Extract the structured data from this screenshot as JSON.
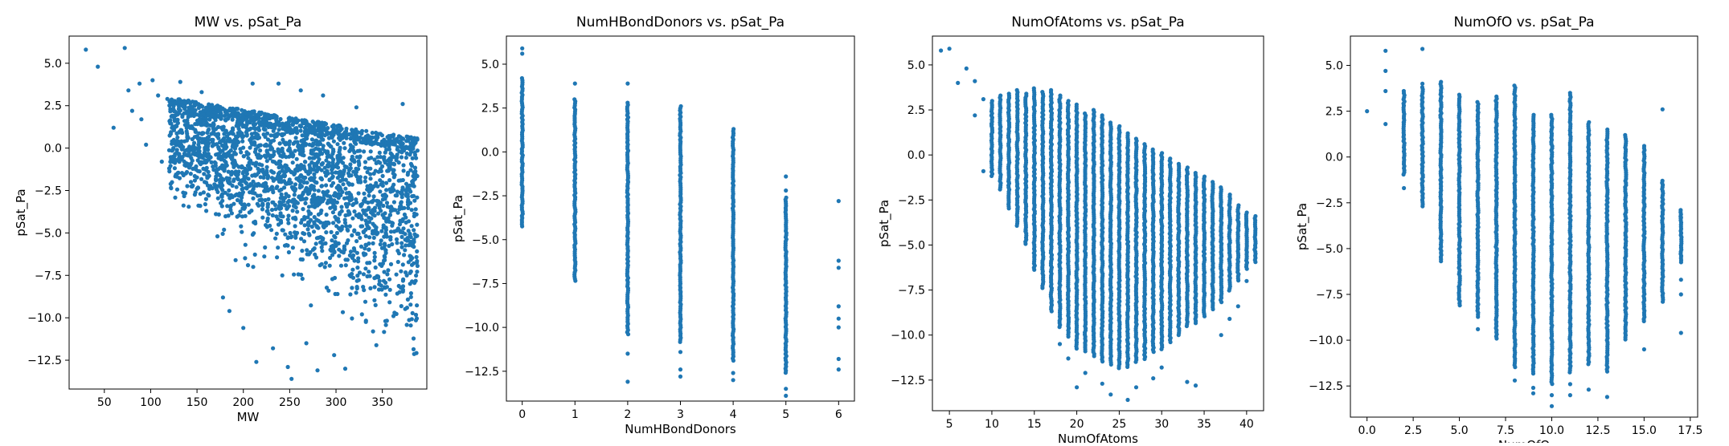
{
  "figure": {
    "background": "#ffffff",
    "marker_color": "#1f77b4"
  },
  "chart_data": [
    {
      "type": "scatter",
      "title": "MW vs. pSat_Pa",
      "xlabel": "MW",
      "ylabel": "pSat_Pa",
      "xlim": [
        12,
        398
      ],
      "ylim": [
        -14.2,
        6.6
      ],
      "xticks": [
        {
          "v": 50,
          "label": "50"
        },
        {
          "v": 100,
          "label": "100"
        },
        {
          "v": 150,
          "label": "150"
        },
        {
          "v": 200,
          "label": "200"
        },
        {
          "v": 250,
          "label": "250"
        },
        {
          "v": 300,
          "label": "300"
        },
        {
          "v": 350,
          "label": "350"
        },
        {
          "v": 400,
          "label": "400"
        }
      ],
      "yticks": [
        {
          "v": 5,
          "label": "5.0"
        },
        {
          "v": 2.5,
          "label": "2.5"
        },
        {
          "v": 0,
          "label": "0.0"
        },
        {
          "v": -2.5,
          "label": "−2.5"
        },
        {
          "v": -5,
          "label": "−5.0"
        },
        {
          "v": -7.5,
          "label": "−7.5"
        },
        {
          "v": -10,
          "label": "−10.0"
        },
        {
          "v": -12.5,
          "label": "−12.5"
        }
      ],
      "grid": false,
      "legend": "none",
      "points": [
        [
          30,
          5.8
        ],
        [
          43,
          4.8
        ],
        [
          60,
          1.2
        ],
        [
          72,
          5.9
        ],
        [
          76,
          3.4
        ],
        [
          80,
          2.2
        ],
        [
          88,
          3.8
        ],
        [
          90,
          1.7
        ],
        [
          95,
          0.2
        ],
        [
          102,
          4.0
        ],
        [
          108,
          3.1
        ],
        [
          112,
          -0.8
        ],
        [
          118,
          2.9
        ],
        [
          120,
          -1.2
        ],
        [
          126,
          1.6
        ],
        [
          132,
          3.9
        ],
        [
          138,
          -0.4
        ],
        [
          144,
          2.2
        ],
        [
          150,
          -2.4
        ],
        [
          155,
          3.3
        ],
        [
          160,
          -3.7
        ],
        [
          168,
          1.0
        ],
        [
          172,
          -5.2
        ],
        [
          178,
          -8.8
        ],
        [
          185,
          -9.6
        ],
        [
          190,
          0.4
        ],
        [
          196,
          -2.1
        ],
        [
          200,
          -10.6
        ],
        [
          205,
          -6.9
        ],
        [
          210,
          3.8
        ],
        [
          214,
          -12.6
        ],
        [
          220,
          -1.0
        ],
        [
          226,
          -4.3
        ],
        [
          232,
          -11.8
        ],
        [
          238,
          3.8
        ],
        [
          242,
          -7.5
        ],
        [
          248,
          -12.9
        ],
        [
          252,
          -13.6
        ],
        [
          258,
          -5.0
        ],
        [
          262,
          3.4
        ],
        [
          268,
          -11.5
        ],
        [
          274,
          -3.2
        ],
        [
          280,
          -13.1
        ],
        [
          286,
          3.1
        ],
        [
          292,
          -8.4
        ],
        [
          298,
          -12.2
        ],
        [
          304,
          -2.3
        ],
        [
          310,
          -13.0
        ],
        [
          316,
          -6.1
        ],
        [
          322,
          2.4
        ],
        [
          328,
          -9.8
        ],
        [
          334,
          -4.6
        ],
        [
          340,
          -10.8
        ],
        [
          346,
          -1.4
        ],
        [
          352,
          -7.3
        ],
        [
          358,
          -3.5
        ],
        [
          362,
          -9.9
        ],
        [
          368,
          -6.2
        ],
        [
          372,
          2.6
        ],
        [
          376,
          -2.8
        ],
        [
          380,
          -8.0
        ],
        [
          384,
          -5.4
        ],
        [
          386,
          -3.6
        ],
        [
          240,
          -3.3
        ],
        [
          256,
          -4.1
        ],
        [
          270,
          -2.7
        ],
        [
          295,
          -5.8
        ],
        [
          310,
          -4.4
        ],
        [
          330,
          -3.1
        ],
        [
          345,
          -5.0
        ]
      ],
      "columns": []
    },
    {
      "type": "scatter",
      "title": "NumHBondDonors vs. pSat_Pa",
      "xlabel": "NumHBondDonors",
      "ylabel": "pSat_Pa",
      "xlim": [
        -0.3,
        6.3
      ],
      "ylim": [
        -14.2,
        6.6
      ],
      "xticks": [
        {
          "v": 0,
          "label": "0"
        },
        {
          "v": 1,
          "label": "1"
        },
        {
          "v": 2,
          "label": "2"
        },
        {
          "v": 3,
          "label": "3"
        },
        {
          "v": 4,
          "label": "4"
        },
        {
          "v": 5,
          "label": "5"
        },
        {
          "v": 6,
          "label": "6"
        }
      ],
      "yticks": [
        {
          "v": 5,
          "label": "5.0"
        },
        {
          "v": 2.5,
          "label": "2.5"
        },
        {
          "v": 0,
          "label": "0.0"
        },
        {
          "v": -2.5,
          "label": "−2.5"
        },
        {
          "v": -5,
          "label": "−5.0"
        },
        {
          "v": -7.5,
          "label": "−7.5"
        },
        {
          "v": -10,
          "label": "−10.0"
        },
        {
          "v": -12.5,
          "label": "−12.5"
        }
      ],
      "grid": false,
      "legend": "none",
      "points": [
        [
          0,
          5.9
        ],
        [
          0,
          5.6
        ],
        [
          1,
          3.9
        ],
        [
          2,
          3.9
        ],
        [
          2,
          -11.5
        ],
        [
          2,
          -13.1
        ],
        [
          3,
          -11.4
        ],
        [
          3,
          -12.4
        ],
        [
          3,
          -12.8
        ],
        [
          4,
          -12.6
        ],
        [
          4,
          -13.0
        ],
        [
          5,
          -13.5
        ],
        [
          5,
          -13.9
        ],
        [
          5,
          -2.2
        ],
        [
          5,
          -1.4
        ],
        [
          6,
          -2.8
        ],
        [
          6,
          -6.2
        ],
        [
          6,
          -6.6
        ],
        [
          6,
          -8.8
        ],
        [
          6,
          -9.5
        ],
        [
          6,
          -10.0
        ],
        [
          6,
          -11.8
        ],
        [
          6,
          -12.4
        ]
      ],
      "columns": [
        {
          "x": 0,
          "y_min": -4.3,
          "y_max": 4.2
        },
        {
          "x": 1,
          "y_min": -7.4,
          "y_max": 3.0
        },
        {
          "x": 2,
          "y_min": -10.4,
          "y_max": 2.8
        },
        {
          "x": 3,
          "y_min": -10.9,
          "y_max": 2.6
        },
        {
          "x": 4,
          "y_min": -11.9,
          "y_max": 1.3
        },
        {
          "x": 5,
          "y_min": -12.6,
          "y_max": -2.6
        }
      ]
    },
    {
      "type": "scatter",
      "title": "NumOfAtoms vs. pSat_Pa",
      "xlabel": "NumOfAtoms",
      "ylabel": "pSat_Pa",
      "xlim": [
        3,
        42
      ],
      "ylim": [
        -14.2,
        6.6
      ],
      "xticks": [
        {
          "v": 5,
          "label": "5"
        },
        {
          "v": 10,
          "label": "10"
        },
        {
          "v": 15,
          "label": "15"
        },
        {
          "v": 20,
          "label": "20"
        },
        {
          "v": 25,
          "label": "25"
        },
        {
          "v": 30,
          "label": "30"
        },
        {
          "v": 35,
          "label": "35"
        },
        {
          "v": 40,
          "label": "40"
        }
      ],
      "yticks": [
        {
          "v": 5,
          "label": "5.0"
        },
        {
          "v": 2.5,
          "label": "2.5"
        },
        {
          "v": 0,
          "label": "0.0"
        },
        {
          "v": -2.5,
          "label": "−2.5"
        },
        {
          "v": -5,
          "label": "−5.0"
        },
        {
          "v": -7.5,
          "label": "−7.5"
        },
        {
          "v": -10,
          "label": "−10.0"
        },
        {
          "v": -12.5,
          "label": "−12.5"
        }
      ],
      "grid": false,
      "legend": "none",
      "points": [
        [
          4,
          5.8
        ],
        [
          5,
          5.9
        ],
        [
          6,
          4.0
        ],
        [
          7,
          4.8
        ],
        [
          8,
          2.2
        ],
        [
          8,
          4.1
        ],
        [
          9,
          -0.9
        ],
        [
          9,
          3.1
        ],
        [
          10,
          1.7
        ],
        [
          11,
          0.6
        ],
        [
          12,
          -1.5
        ],
        [
          13,
          -3.0
        ],
        [
          14,
          -4.2
        ],
        [
          15,
          -5.6
        ],
        [
          18,
          -10.5
        ],
        [
          19,
          -11.3
        ],
        [
          20,
          -12.9
        ],
        [
          21,
          -12.1
        ],
        [
          23,
          -12.7
        ],
        [
          24,
          -13.3
        ],
        [
          26,
          -13.6
        ],
        [
          27,
          -12.9
        ],
        [
          29,
          -12.4
        ],
        [
          30,
          -11.8
        ],
        [
          33,
          -12.6
        ],
        [
          34,
          -12.8
        ],
        [
          37,
          -10.0
        ],
        [
          38,
          -9.1
        ],
        [
          39,
          -8.4
        ],
        [
          40,
          -7.0
        ]
      ],
      "columns": [
        {
          "x": 10,
          "y_min": -1.2,
          "y_max": 3.0
        },
        {
          "x": 11,
          "y_min": -2.0,
          "y_max": 3.3
        },
        {
          "x": 12,
          "y_min": -3.0,
          "y_max": 3.4
        },
        {
          "x": 13,
          "y_min": -4.0,
          "y_max": 3.6
        },
        {
          "x": 14,
          "y_min": -5.0,
          "y_max": 3.4
        },
        {
          "x": 15,
          "y_min": -6.4,
          "y_max": 3.7
        },
        {
          "x": 16,
          "y_min": -7.5,
          "y_max": 3.5
        },
        {
          "x": 17,
          "y_min": -8.7,
          "y_max": 3.6
        },
        {
          "x": 18,
          "y_min": -9.6,
          "y_max": 3.3
        },
        {
          "x": 19,
          "y_min": -10.2,
          "y_max": 3.0
        },
        {
          "x": 20,
          "y_min": -10.8,
          "y_max": 2.8
        },
        {
          "x": 21,
          "y_min": -11.0,
          "y_max": 2.3
        },
        {
          "x": 22,
          "y_min": -11.2,
          "y_max": 2.5
        },
        {
          "x": 23,
          "y_min": -11.5,
          "y_max": 2.2
        },
        {
          "x": 24,
          "y_min": -11.7,
          "y_max": 1.8
        },
        {
          "x": 25,
          "y_min": -11.9,
          "y_max": 1.6
        },
        {
          "x": 26,
          "y_min": -11.8,
          "y_max": 1.2
        },
        {
          "x": 27,
          "y_min": -11.6,
          "y_max": 0.9
        },
        {
          "x": 28,
          "y_min": -11.4,
          "y_max": 0.6
        },
        {
          "x": 29,
          "y_min": -11.0,
          "y_max": 0.3
        },
        {
          "x": 30,
          "y_min": -10.8,
          "y_max": 0.1
        },
        {
          "x": 31,
          "y_min": -10.4,
          "y_max": -0.2
        },
        {
          "x": 32,
          "y_min": -10.0,
          "y_max": -0.5
        },
        {
          "x": 33,
          "y_min": -9.6,
          "y_max": -0.7
        },
        {
          "x": 34,
          "y_min": -9.4,
          "y_max": -1.0
        },
        {
          "x": 35,
          "y_min": -9.0,
          "y_max": -1.2
        },
        {
          "x": 36,
          "y_min": -8.6,
          "y_max": -1.5
        },
        {
          "x": 37,
          "y_min": -8.2,
          "y_max": -1.8
        },
        {
          "x": 38,
          "y_min": -7.6,
          "y_max": -2.2
        },
        {
          "x": 39,
          "y_min": -7.0,
          "y_max": -2.8
        },
        {
          "x": 40,
          "y_min": -6.4,
          "y_max": -3.2
        },
        {
          "x": 41,
          "y_min": -6.0,
          "y_max": -3.4
        }
      ]
    },
    {
      "type": "scatter",
      "title": "NumOfO vs. pSat_Pa",
      "xlabel": "NumOfO",
      "ylabel": "pSat_Pa",
      "xlim": [
        -0.9,
        17.9
      ],
      "ylim": [
        -14.2,
        6.6
      ],
      "xticks": [
        {
          "v": 0,
          "label": "0.0"
        },
        {
          "v": 2.5,
          "label": "2.5"
        },
        {
          "v": 5,
          "label": "5.0"
        },
        {
          "v": 7.5,
          "label": "7.5"
        },
        {
          "v": 10,
          "label": "10.0"
        },
        {
          "v": 12.5,
          "label": "12.5"
        },
        {
          "v": 15,
          "label": "15.0"
        },
        {
          "v": 17.5,
          "label": "17.5"
        }
      ],
      "yticks": [
        {
          "v": 5,
          "label": "5.0"
        },
        {
          "v": 2.5,
          "label": "2.5"
        },
        {
          "v": 0,
          "label": "0.0"
        },
        {
          "v": -2.5,
          "label": "−2.5"
        },
        {
          "v": -5,
          "label": "−5.0"
        },
        {
          "v": -7.5,
          "label": "−7.5"
        },
        {
          "v": -10,
          "label": "−10.0"
        },
        {
          "v": -12.5,
          "label": "−12.5"
        }
      ],
      "grid": false,
      "legend": "none",
      "points": [
        [
          0,
          2.5
        ],
        [
          1,
          1.8
        ],
        [
          1,
          4.7
        ],
        [
          1,
          5.8
        ],
        [
          1,
          3.6
        ],
        [
          2,
          1.9
        ],
        [
          2,
          -1.7
        ],
        [
          3,
          5.9
        ],
        [
          3,
          4.0
        ],
        [
          6,
          -9.4
        ],
        [
          8,
          -12.2
        ],
        [
          9,
          -12.9
        ],
        [
          9,
          -12.6
        ],
        [
          10,
          -13.6
        ],
        [
          10,
          -13.0
        ],
        [
          11,
          -13.0
        ],
        [
          11,
          -12.4
        ],
        [
          12,
          -12.7
        ],
        [
          13,
          -13.1
        ],
        [
          15,
          -10.5
        ],
        [
          16,
          2.6
        ],
        [
          17,
          -3.3
        ],
        [
          17,
          -6.7
        ],
        [
          17,
          -7.5
        ],
        [
          17,
          -9.6
        ]
      ],
      "columns": [
        {
          "x": 2,
          "y_min": -1.0,
          "y_max": 3.6
        },
        {
          "x": 3,
          "y_min": -2.8,
          "y_max": 3.8
        },
        {
          "x": 4,
          "y_min": -5.8,
          "y_max": 4.1
        },
        {
          "x": 5,
          "y_min": -8.2,
          "y_max": 3.4
        },
        {
          "x": 6,
          "y_min": -8.8,
          "y_max": 3.0
        },
        {
          "x": 7,
          "y_min": -10.0,
          "y_max": 3.3
        },
        {
          "x": 8,
          "y_min": -11.5,
          "y_max": 3.9
        },
        {
          "x": 9,
          "y_min": -11.9,
          "y_max": 2.3
        },
        {
          "x": 10,
          "y_min": -12.5,
          "y_max": 2.3
        },
        {
          "x": 11,
          "y_min": -11.8,
          "y_max": 3.5
        },
        {
          "x": 12,
          "y_min": -11.4,
          "y_max": 1.9
        },
        {
          "x": 13,
          "y_min": -11.8,
          "y_max": 1.5
        },
        {
          "x": 14,
          "y_min": -10.0,
          "y_max": 1.2
        },
        {
          "x": 15,
          "y_min": -9.0,
          "y_max": 0.6
        },
        {
          "x": 16,
          "y_min": -8.0,
          "y_max": -1.3
        },
        {
          "x": 17,
          "y_min": -5.8,
          "y_max": -2.9
        }
      ]
    }
  ]
}
